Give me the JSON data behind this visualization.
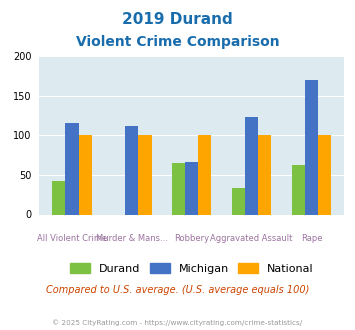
{
  "title_line1": "2019 Durand",
  "title_line2": "Violent Crime Comparison",
  "cat_line1": [
    "",
    "Murder & Mans...",
    "",
    "Aggravated Assault",
    ""
  ],
  "cat_line2": [
    "All Violent Crime",
    "",
    "Robbery",
    "",
    "Rape"
  ],
  "durand": [
    42,
    0,
    65,
    33,
    62
  ],
  "michigan": [
    115,
    112,
    66,
    123,
    170
  ],
  "national": [
    100,
    100,
    101,
    100,
    100
  ],
  "color_durand": "#7dc142",
  "color_michigan": "#4472c4",
  "color_national": "#ffa500",
  "ylim": [
    0,
    200
  ],
  "yticks": [
    0,
    50,
    100,
    150,
    200
  ],
  "bg_color": "#ddeaf0",
  "title_color": "#1a6dad",
  "subtitle_note": "Compared to U.S. average. (U.S. average equals 100)",
  "footer": "© 2025 CityRating.com - https://www.cityrating.com/crime-statistics/",
  "legend_labels": [
    "Durand",
    "Michigan",
    "National"
  ],
  "bar_width": 0.22
}
